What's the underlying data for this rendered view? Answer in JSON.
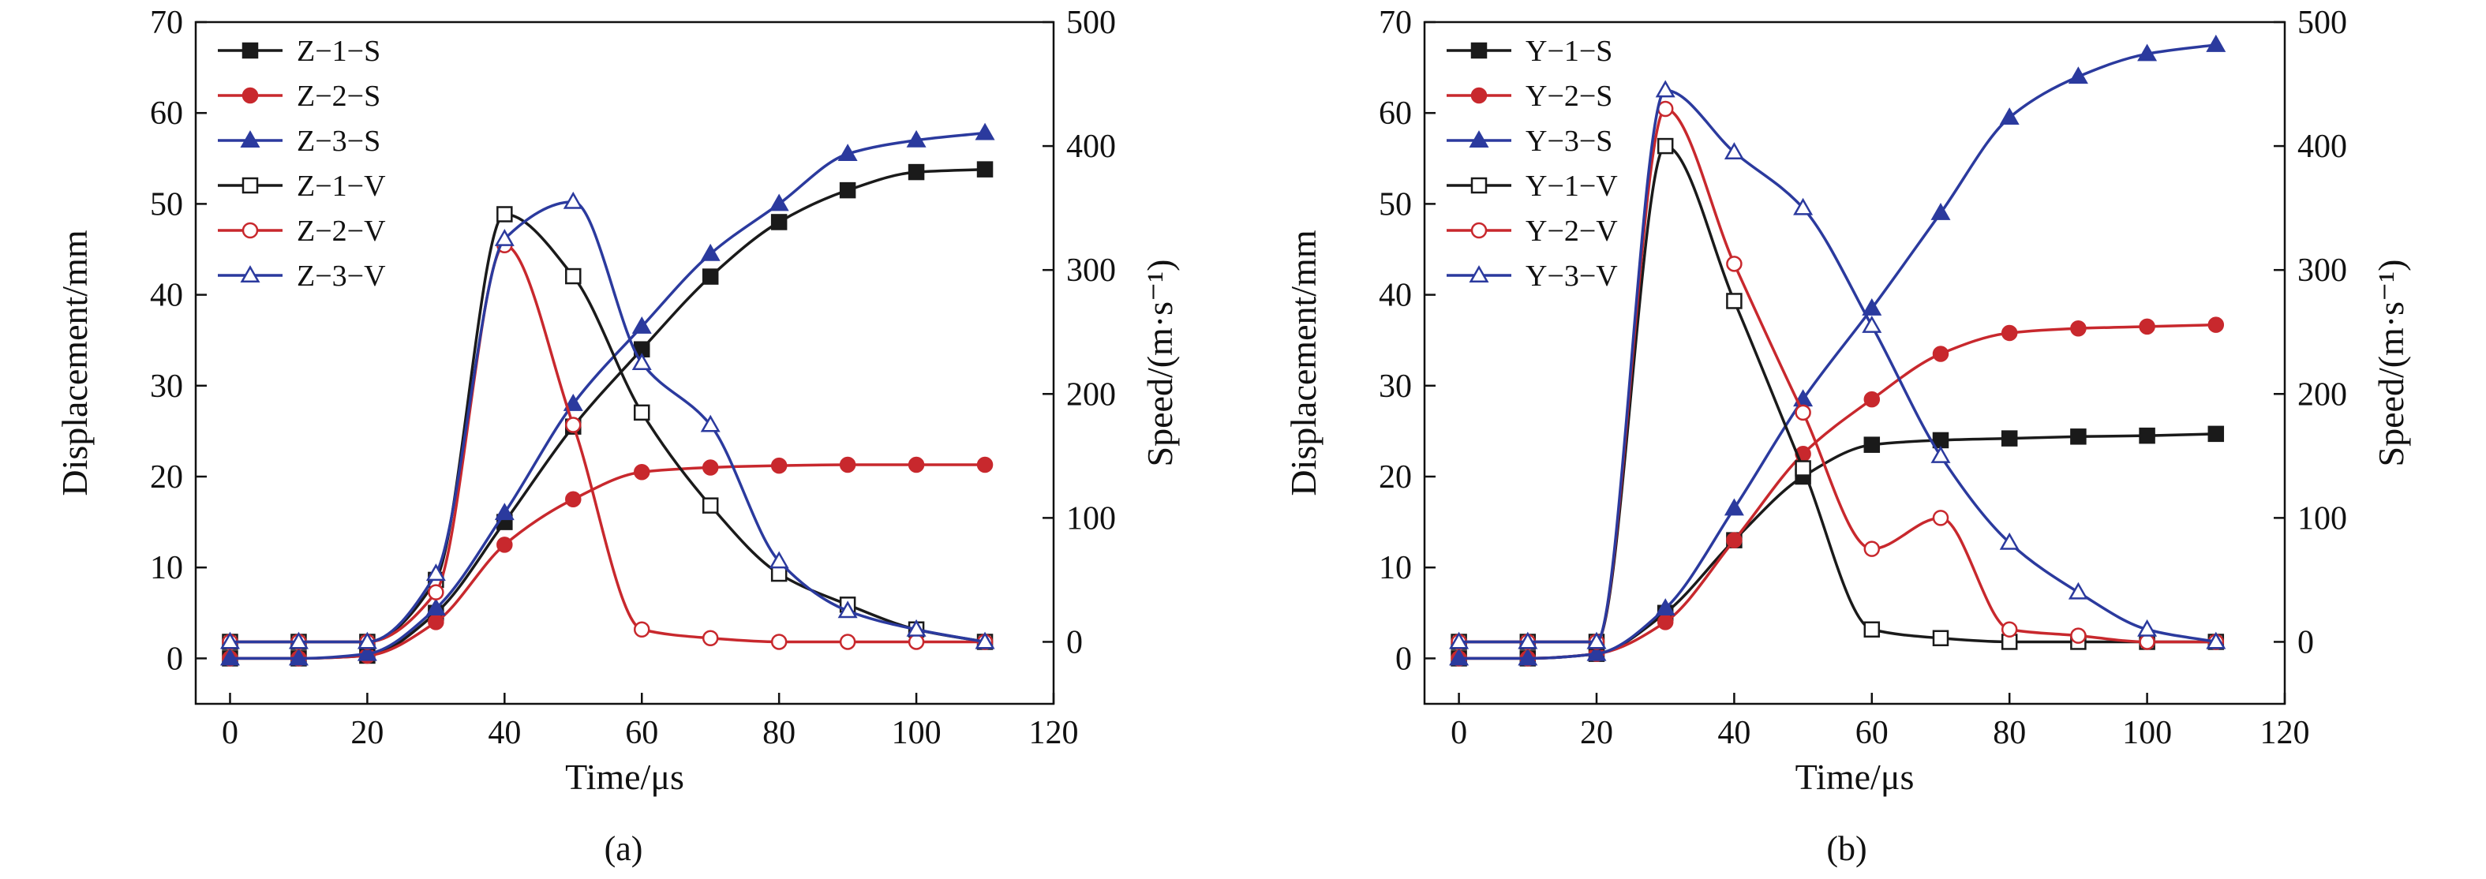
{
  "chart_data": [
    {
      "type": "line",
      "caption": "(a)",
      "xlabel": "Time/μs",
      "ylabel": "Displacement/mm",
      "y2label": "Speed/(m·s⁻¹)",
      "xlim": [
        -5,
        120
      ],
      "ylim": [
        -5,
        70
      ],
      "y2lim": [
        -50,
        500
      ],
      "xticks": [
        0,
        20,
        40,
        60,
        80,
        100,
        120
      ],
      "yticks": [
        0,
        10,
        20,
        30,
        40,
        50,
        60,
        70
      ],
      "y2ticks": [
        0,
        100,
        200,
        300,
        400,
        500
      ],
      "legend_position": "top-left",
      "grid": false,
      "series": [
        {
          "name": "Z−1−S",
          "axis": "left",
          "color": "#1a1a1a",
          "marker": "square-filled",
          "x": [
            0,
            10,
            20,
            30,
            40,
            50,
            60,
            70,
            80,
            90,
            100,
            110
          ],
          "y": [
            0,
            0,
            0.3,
            5,
            15,
            25.5,
            34,
            42,
            48,
            51.5,
            53.5,
            53.8
          ]
        },
        {
          "name": "Z−2−S",
          "axis": "left",
          "color": "#c8282d",
          "marker": "circle-filled",
          "x": [
            0,
            10,
            20,
            30,
            40,
            50,
            60,
            70,
            80,
            90,
            100,
            110
          ],
          "y": [
            0,
            0,
            0.3,
            4,
            12.5,
            17.5,
            20.5,
            21,
            21.2,
            21.3,
            21.3,
            21.3
          ]
        },
        {
          "name": "Z−3−S",
          "axis": "left",
          "color": "#2b3a9e",
          "marker": "triangle-filled",
          "x": [
            0,
            10,
            20,
            30,
            40,
            50,
            60,
            70,
            80,
            90,
            100,
            110
          ],
          "y": [
            0,
            0,
            0.5,
            5.5,
            16,
            28,
            36.5,
            44.5,
            50,
            55.5,
            57,
            57.8
          ]
        },
        {
          "name": "Z−1−V",
          "axis": "right",
          "color": "#1a1a1a",
          "marker": "square-open",
          "x": [
            0,
            10,
            20,
            30,
            40,
            50,
            60,
            70,
            80,
            90,
            100,
            110
          ],
          "y": [
            0,
            0,
            0,
            50,
            345,
            295,
            185,
            110,
            55,
            30,
            10,
            0
          ]
        },
        {
          "name": "Z−2−V",
          "axis": "right",
          "color": "#c8282d",
          "marker": "circle-open",
          "x": [
            0,
            10,
            20,
            30,
            40,
            50,
            60,
            70,
            80,
            90,
            100,
            110
          ],
          "y": [
            0,
            0,
            0,
            40,
            320,
            175,
            10,
            3,
            0,
            0,
            0,
            0
          ]
        },
        {
          "name": "Z−3−V",
          "axis": "right",
          "color": "#2b3a9e",
          "marker": "triangle-open",
          "x": [
            0,
            10,
            20,
            30,
            40,
            50,
            60,
            70,
            80,
            90,
            100,
            110
          ],
          "y": [
            0,
            0,
            0,
            55,
            325,
            355,
            225,
            175,
            65,
            25,
            10,
            0
          ]
        }
      ]
    },
    {
      "type": "line",
      "caption": "(b)",
      "xlabel": "Time/μs",
      "ylabel": "Displacement/mm",
      "y2label": "Speed/(m·s⁻¹)",
      "xlim": [
        -5,
        120
      ],
      "ylim": [
        -5,
        70
      ],
      "y2lim": [
        -50,
        500
      ],
      "xticks": [
        0,
        20,
        40,
        60,
        80,
        100,
        120
      ],
      "yticks": [
        0,
        10,
        20,
        30,
        40,
        50,
        60,
        70
      ],
      "y2ticks": [
        0,
        100,
        200,
        300,
        400,
        500
      ],
      "legend_position": "top-left",
      "grid": false,
      "series": [
        {
          "name": "Y−1−S",
          "axis": "left",
          "color": "#1a1a1a",
          "marker": "square-filled",
          "x": [
            0,
            10,
            20,
            30,
            40,
            50,
            60,
            70,
            80,
            90,
            100,
            110
          ],
          "y": [
            0,
            0,
            0.5,
            5,
            13,
            20,
            23.5,
            24,
            24.2,
            24.4,
            24.5,
            24.7
          ]
        },
        {
          "name": "Y−2−S",
          "axis": "left",
          "color": "#c8282d",
          "marker": "circle-filled",
          "x": [
            0,
            10,
            20,
            30,
            40,
            50,
            60,
            70,
            80,
            90,
            100,
            110
          ],
          "y": [
            0,
            0,
            0.5,
            4,
            13,
            22.5,
            28.5,
            33.5,
            35.8,
            36.3,
            36.5,
            36.7
          ]
        },
        {
          "name": "Y−3−S",
          "axis": "left",
          "color": "#2b3a9e",
          "marker": "triangle-filled",
          "x": [
            0,
            10,
            20,
            30,
            40,
            50,
            60,
            70,
            80,
            90,
            100,
            110
          ],
          "y": [
            0,
            0,
            0.5,
            5.5,
            16.5,
            28.5,
            38.5,
            49,
            59.5,
            64,
            66.5,
            67.5
          ]
        },
        {
          "name": "Y−1−V",
          "axis": "right",
          "color": "#1a1a1a",
          "marker": "square-open",
          "x": [
            0,
            10,
            20,
            30,
            40,
            50,
            60,
            70,
            80,
            90,
            100,
            110
          ],
          "y": [
            0,
            0,
            0,
            400,
            275,
            140,
            10,
            3,
            0,
            0,
            0,
            0
          ]
        },
        {
          "name": "Y−2−V",
          "axis": "right",
          "color": "#c8282d",
          "marker": "circle-open",
          "x": [
            0,
            10,
            20,
            30,
            40,
            50,
            60,
            70,
            80,
            90,
            100,
            110
          ],
          "y": [
            0,
            0,
            0,
            430,
            305,
            185,
            75,
            100,
            10,
            5,
            0,
            0
          ]
        },
        {
          "name": "Y−3−V",
          "axis": "right",
          "color": "#2b3a9e",
          "marker": "triangle-open",
          "x": [
            0,
            10,
            20,
            30,
            40,
            50,
            60,
            70,
            80,
            90,
            100,
            110
          ],
          "y": [
            0,
            0,
            0,
            445,
            395,
            350,
            255,
            150,
            80,
            40,
            10,
            0
          ]
        }
      ]
    }
  ]
}
